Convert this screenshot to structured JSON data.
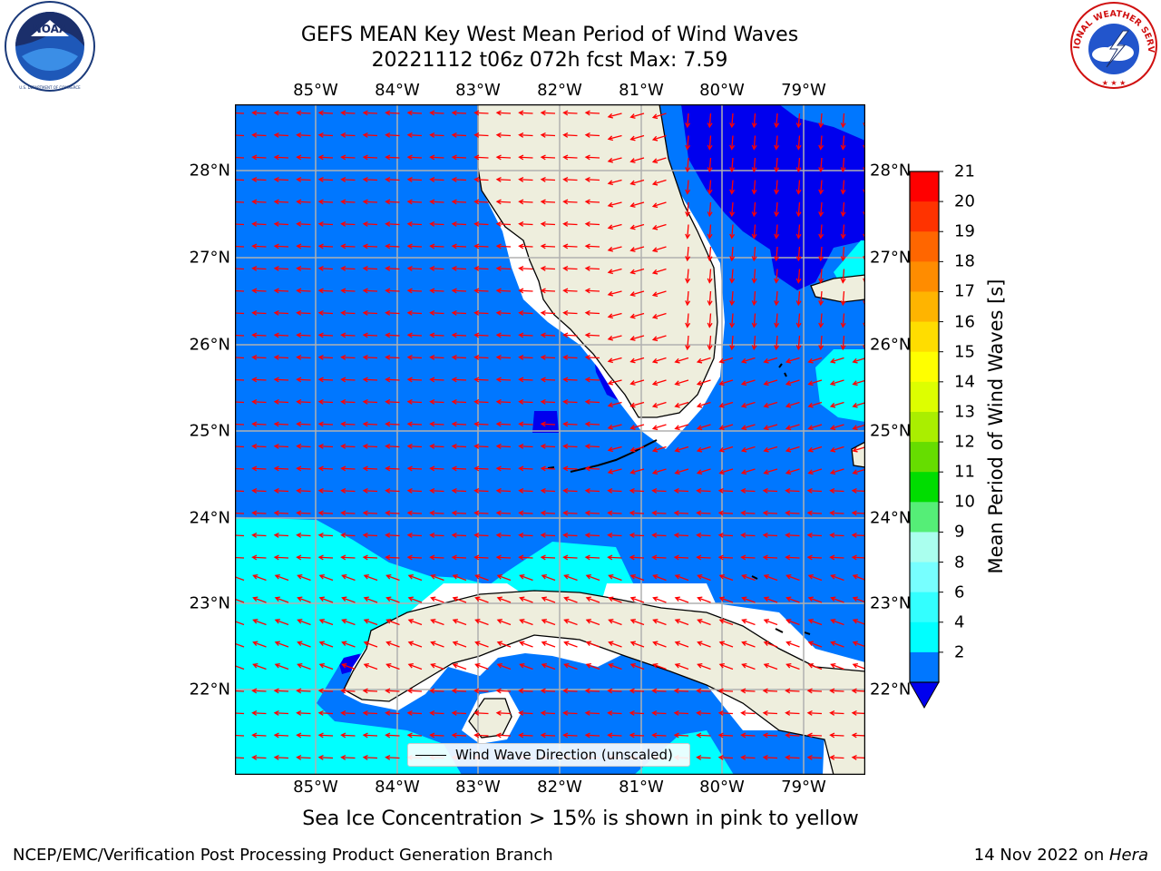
{
  "title": {
    "line1": "GEFS MEAN Key West Mean Period of Wind Waves",
    "line2": "20221112 t06z 072h fcst   Max: 7.59"
  },
  "caption": "Sea Ice Concentration > 15% is shown in pink to yellow",
  "footer": {
    "left": "NCEP/EMC/Verification Post Processing Product Generation Branch",
    "right_prefix": "14 Nov 2022 on ",
    "right_host": "Hera"
  },
  "logos": {
    "left": {
      "text": "NOAA",
      "ring_text": "NATIONAL OCEANIC AND ATMOSPHERIC ADMINISTRATION · U.S. DEPARTMENT OF COMMERCE",
      "icon": "noaa-logo"
    },
    "right": {
      "ring_text": "NATIONAL WEATHER SERVICE",
      "icon": "nws-logo"
    }
  },
  "map": {
    "longitude_ticks": [
      "85°W",
      "84°W",
      "83°W",
      "82°W",
      "81°W",
      "80°W",
      "79°W"
    ],
    "latitude_ticks": [
      "28°N",
      "27°N",
      "26°N",
      "25°N",
      "24°N",
      "23°N",
      "22°N"
    ],
    "legend_label": "Wind Wave Direction (unscaled)",
    "colors": {
      "ocean_2_4": "#0077ff",
      "ocean_4_6": "#00ffff",
      "below_2": "#0000ee",
      "land": "#eeeedd",
      "arrow": "#ff0000",
      "grid": "#b0b0b0"
    }
  },
  "colorbar": {
    "label": "Mean Period of Wind Waves [s]",
    "tick_labels": [
      "21",
      "20",
      "19",
      "18",
      "17",
      "16",
      "15",
      "14",
      "13",
      "12",
      "11",
      "10",
      "9",
      "8",
      "6",
      "4",
      "2"
    ],
    "bands_top_to_bottom": [
      "#ff0000",
      "#ff3300",
      "#ff6600",
      "#ff8c00",
      "#ffb400",
      "#ffdd00",
      "#ffff00",
      "#ddff00",
      "#aaee00",
      "#66dd00",
      "#00dd00",
      "#55ee77",
      "#aaffee",
      "#77ffff",
      "#33ffff",
      "#00ffff",
      "#0077ff"
    ],
    "under_color": "#0000ee"
  }
}
